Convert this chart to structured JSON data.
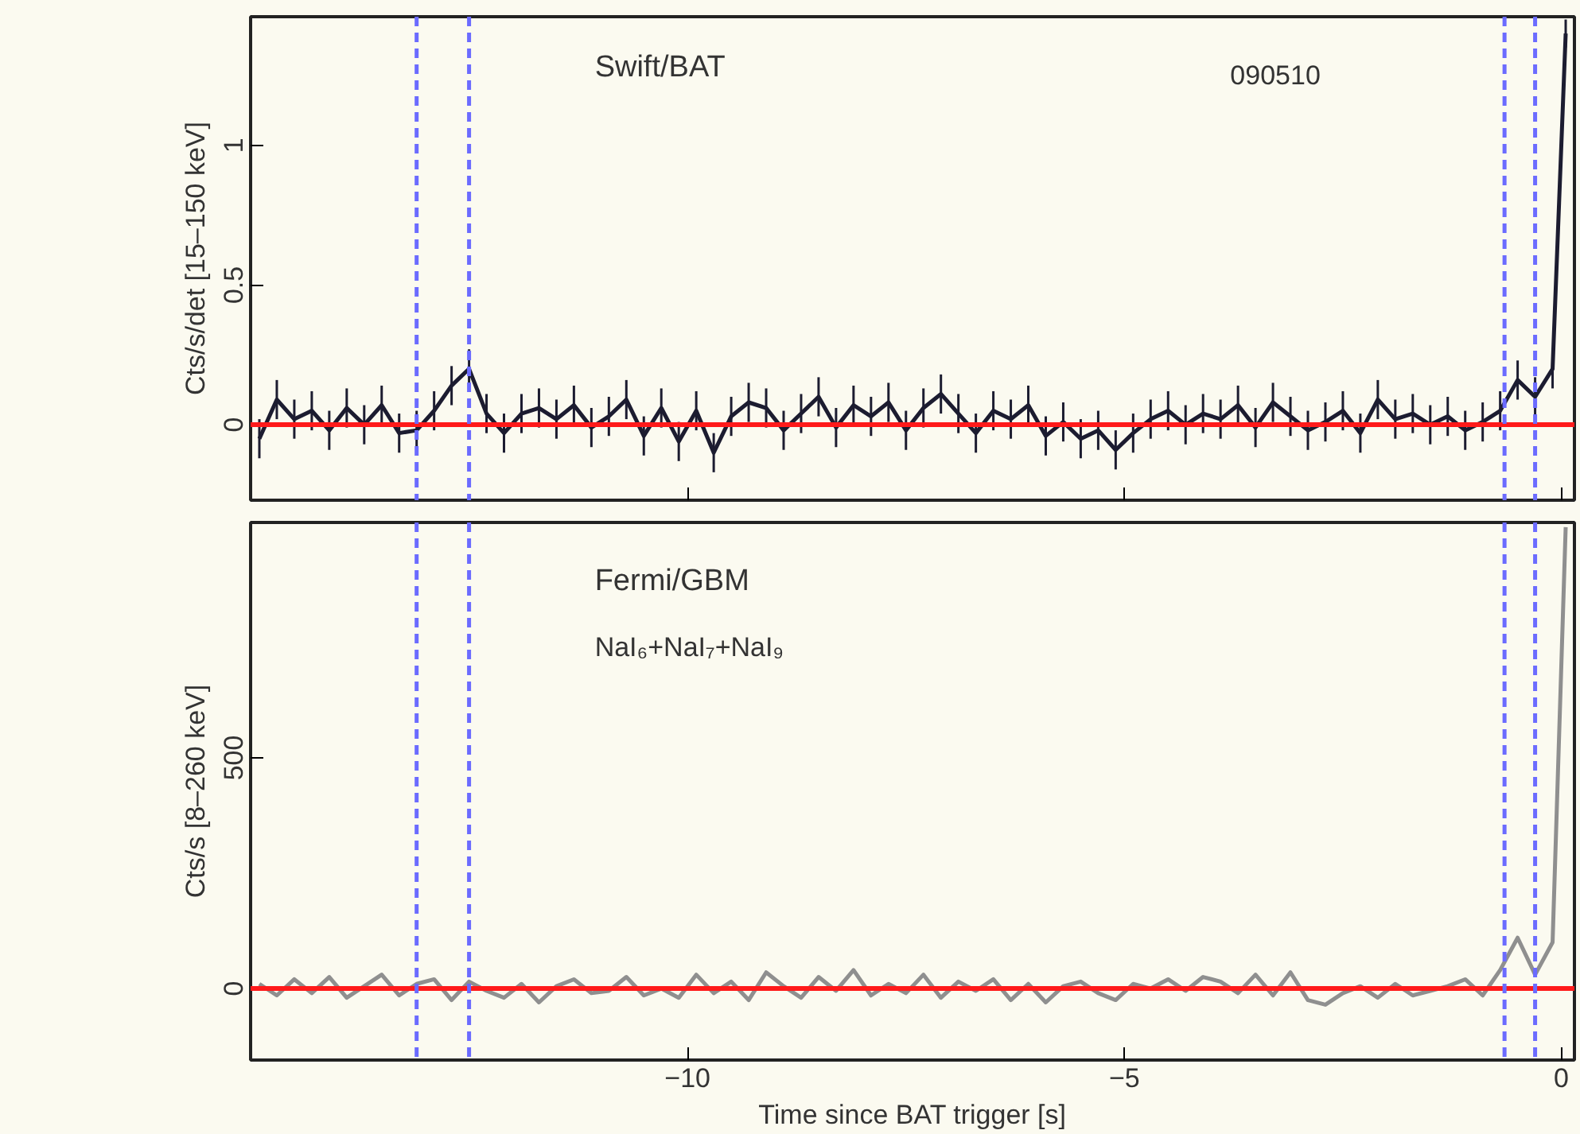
{
  "chart_data": [
    {
      "type": "line",
      "ylabel": "Cts/s/det [15–150 keV]",
      "annotations": [
        "Swift/BAT",
        "090510"
      ],
      "xlim": [
        -15,
        0.15
      ],
      "ylim": [
        -0.27,
        1.46
      ],
      "xticks": [
        -10,
        -5,
        0
      ],
      "yticks": [
        0,
        0.5,
        1
      ],
      "tick_labels": "y",
      "x": [
        -14.9,
        -14.7,
        -14.5,
        -14.3,
        -14.1,
        -13.9,
        -13.7,
        -13.5,
        -13.3,
        -13.1,
        -12.9,
        -12.7,
        -12.5,
        -12.3,
        -12.1,
        -11.9,
        -11.7,
        -11.5,
        -11.3,
        -11.1,
        -10.9,
        -10.7,
        -10.5,
        -10.3,
        -10.1,
        -9.9,
        -9.7,
        -9.5,
        -9.3,
        -9.1,
        -8.9,
        -8.7,
        -8.5,
        -8.3,
        -8.1,
        -7.9,
        -7.7,
        -7.5,
        -7.3,
        -7.1,
        -6.9,
        -6.7,
        -6.5,
        -6.3,
        -6.1,
        -5.9,
        -5.7,
        -5.5,
        -5.3,
        -5.1,
        -4.9,
        -4.7,
        -4.5,
        -4.3,
        -4.1,
        -3.9,
        -3.7,
        -3.5,
        -3.3,
        -3.1,
        -2.9,
        -2.7,
        -2.5,
        -2.3,
        -2.1,
        -1.9,
        -1.7,
        -1.5,
        -1.3,
        -1.1,
        -0.9,
        -0.7,
        -0.5,
        -0.3,
        -0.1,
        0.05
      ],
      "series": [
        {
          "color": "#1c1c30",
          "values": [
            -0.05,
            0.09,
            0.02,
            0.05,
            -0.02,
            0.06,
            0.0,
            0.07,
            -0.03,
            -0.02,
            0.05,
            0.14,
            0.2,
            0.04,
            -0.03,
            0.04,
            0.06,
            0.02,
            0.07,
            -0.01,
            0.03,
            0.09,
            -0.04,
            0.06,
            -0.06,
            0.05,
            -0.1,
            0.03,
            0.08,
            0.06,
            -0.02,
            0.04,
            0.1,
            -0.01,
            0.07,
            0.03,
            0.08,
            -0.02,
            0.06,
            0.11,
            0.04,
            -0.03,
            0.05,
            0.02,
            0.07,
            -0.04,
            0.01,
            -0.05,
            -0.02,
            -0.09,
            -0.03,
            0.02,
            0.05,
            0.0,
            0.04,
            0.02,
            0.07,
            -0.01,
            0.08,
            0.03,
            -0.02,
            0.01,
            0.05,
            -0.03,
            0.09,
            0.02,
            0.04,
            0.0,
            0.03,
            -0.02,
            0.01,
            0.05,
            0.16,
            0.1,
            0.2,
            1.4
          ],
          "errors": [
            0.07,
            0.07,
            0.07,
            0.07,
            0.07,
            0.07,
            0.07,
            0.07,
            0.07,
            0.07,
            0.07,
            0.07,
            0.07,
            0.07,
            0.07,
            0.07,
            0.07,
            0.07,
            0.07,
            0.07,
            0.07,
            0.07,
            0.07,
            0.07,
            0.07,
            0.07,
            0.07,
            0.07,
            0.07,
            0.07,
            0.07,
            0.07,
            0.07,
            0.07,
            0.07,
            0.07,
            0.07,
            0.07,
            0.07,
            0.07,
            0.07,
            0.07,
            0.07,
            0.07,
            0.07,
            0.07,
            0.07,
            0.07,
            0.07,
            0.07,
            0.07,
            0.07,
            0.07,
            0.07,
            0.07,
            0.07,
            0.07,
            0.07,
            0.07,
            0.07,
            0.07,
            0.07,
            0.07,
            0.07,
            0.07,
            0.07,
            0.07,
            0.07,
            0.07,
            0.07,
            0.07,
            0.07,
            0.07,
            0.07,
            0.07,
            0.05
          ]
        }
      ],
      "ref_lines": [
        {
          "axis": "y",
          "value": 0,
          "color": "#ff1a1a",
          "line_style": "solid"
        },
        {
          "axis": "x",
          "value": -13.1,
          "color": "#6b6bff",
          "line_style": "dashed"
        },
        {
          "axis": "x",
          "value": -12.5,
          "color": "#6b6bff",
          "line_style": "dashed"
        },
        {
          "axis": "x",
          "value": -0.65,
          "color": "#6b6bff",
          "line_style": "dashed"
        },
        {
          "axis": "x",
          "value": -0.3,
          "color": "#6b6bff",
          "line_style": "dashed"
        }
      ]
    },
    {
      "type": "line",
      "xlabel": "Time since BAT trigger [s]",
      "ylabel": "Cts/s [8–260 keV]",
      "annotations": [
        "Fermi/GBM",
        "NaI₆+NaI₇+NaI₉"
      ],
      "xlim": [
        -15,
        0.15
      ],
      "ylim": [
        -155,
        1010
      ],
      "xticks": [
        -10,
        -5,
        0
      ],
      "yticks": [
        0,
        500
      ],
      "x": [
        -14.9,
        -14.7,
        -14.5,
        -14.3,
        -14.1,
        -13.9,
        -13.7,
        -13.5,
        -13.3,
        -13.1,
        -12.9,
        -12.7,
        -12.5,
        -12.3,
        -12.1,
        -11.9,
        -11.7,
        -11.5,
        -11.3,
        -11.1,
        -10.9,
        -10.7,
        -10.5,
        -10.3,
        -10.1,
        -9.9,
        -9.7,
        -9.5,
        -9.3,
        -9.1,
        -8.9,
        -8.7,
        -8.5,
        -8.3,
        -8.1,
        -7.9,
        -7.7,
        -7.5,
        -7.3,
        -7.1,
        -6.9,
        -6.7,
        -6.5,
        -6.3,
        -6.1,
        -5.9,
        -5.7,
        -5.5,
        -5.3,
        -5.1,
        -4.9,
        -4.7,
        -4.5,
        -4.3,
        -4.1,
        -3.9,
        -3.7,
        -3.5,
        -3.3,
        -3.1,
        -2.9,
        -2.7,
        -2.5,
        -2.3,
        -2.1,
        -1.9,
        -1.7,
        -1.5,
        -1.3,
        -1.1,
        -0.9,
        -0.7,
        -0.5,
        -0.3,
        -0.1,
        0.05
      ],
      "series": [
        {
          "color": "#8f8f8f",
          "values": [
            10,
            -15,
            20,
            -10,
            25,
            -20,
            5,
            30,
            -15,
            10,
            20,
            -25,
            15,
            -5,
            -20,
            10,
            -30,
            5,
            20,
            -10,
            -5,
            25,
            -15,
            0,
            -20,
            30,
            -10,
            15,
            -25,
            35,
            5,
            -20,
            25,
            -5,
            40,
            -15,
            10,
            -10,
            30,
            -20,
            15,
            -5,
            20,
            -25,
            10,
            -30,
            5,
            15,
            -10,
            -25,
            10,
            0,
            20,
            -5,
            25,
            15,
            -10,
            30,
            -15,
            35,
            -25,
            -35,
            -10,
            5,
            -20,
            10,
            -15,
            -5,
            5,
            20,
            -15,
            40,
            110,
            30,
            100,
            1000
          ]
        }
      ],
      "ref_lines": [
        {
          "axis": "y",
          "value": 0,
          "color": "#ff1a1a",
          "line_style": "solid"
        },
        {
          "axis": "x",
          "value": -13.1,
          "color": "#6b6bff",
          "line_style": "dashed"
        },
        {
          "axis": "x",
          "value": -12.5,
          "color": "#6b6bff",
          "line_style": "dashed"
        },
        {
          "axis": "x",
          "value": -0.65,
          "color": "#6b6bff",
          "line_style": "dashed"
        },
        {
          "axis": "x",
          "value": -0.3,
          "color": "#6b6bff",
          "line_style": "dashed"
        }
      ]
    }
  ]
}
